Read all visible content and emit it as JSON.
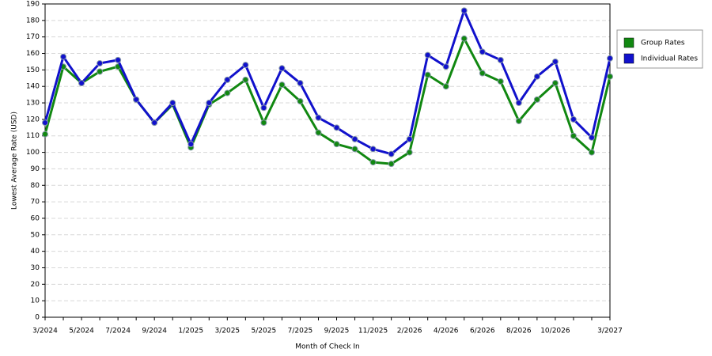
{
  "chart_data": {
    "type": "line",
    "x_label": "Month of Check In",
    "y_label": "Lowest Average Rate (USD)",
    "categories": [
      "3/2024",
      null,
      "5/2024",
      null,
      "7/2024",
      null,
      "9/2024",
      null,
      "1/2025",
      null,
      "3/2025",
      null,
      "5/2025",
      null,
      "7/2025",
      null,
      "9/2025",
      null,
      "11/2025",
      null,
      "2/2026",
      null,
      "4/2026",
      null,
      "6/2026",
      null,
      "8/2026",
      null,
      "10/2026",
      null,
      null,
      "3/2027"
    ],
    "series": [
      {
        "name": "Group Rates",
        "color": "#118811",
        "values": [
          111,
          152,
          142,
          149,
          152,
          132,
          118,
          129,
          103,
          129,
          136,
          144,
          118,
          141,
          131,
          112,
          105,
          102,
          94,
          93,
          100,
          147,
          140,
          169,
          148,
          143,
          119,
          132,
          142,
          110,
          100,
          146
        ]
      },
      {
        "name": "Individual Rates",
        "color": "#1111cc",
        "values": [
          118,
          158,
          142,
          154,
          156,
          132,
          118,
          130,
          105,
          130,
          144,
          153,
          127,
          151,
          142,
          121,
          115,
          108,
          102,
          99,
          108,
          159,
          152,
          186,
          161,
          156,
          130,
          146,
          155,
          120,
          109,
          157
        ]
      }
    ],
    "ylim": [
      0,
      190
    ],
    "yticks": [
      0,
      10,
      20,
      30,
      40,
      50,
      60,
      70,
      80,
      90,
      100,
      110,
      120,
      130,
      140,
      150,
      160,
      170,
      180,
      190
    ],
    "grid": true,
    "legend": "right"
  }
}
